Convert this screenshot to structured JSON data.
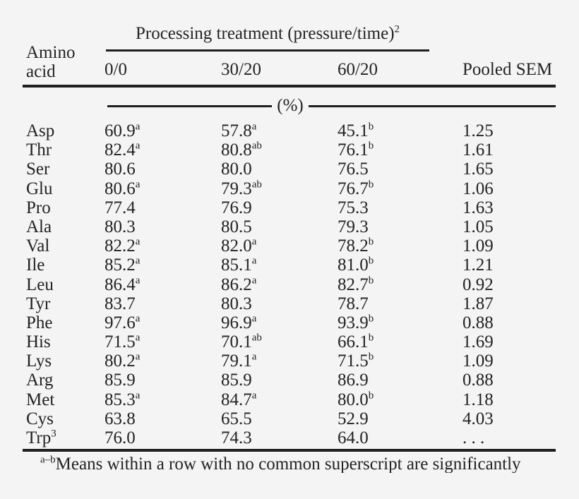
{
  "table": {
    "spanner_title": "Processing treatment (pressure/time)",
    "spanner_title_sup": "2",
    "stub_head_line1": "Amino",
    "stub_head_line2": "acid",
    "col_headers": [
      "0/0",
      "30/20",
      "60/20",
      "Pooled SEM"
    ],
    "unit_label": "(%)",
    "rows": [
      {
        "label": "Asp",
        "label_sup": "",
        "cells": [
          [
            "60.9",
            "a"
          ],
          [
            "57.8",
            "a"
          ],
          [
            "45.1",
            "b"
          ],
          [
            "1.25",
            ""
          ]
        ]
      },
      {
        "label": "Thr",
        "label_sup": "",
        "cells": [
          [
            "82.4",
            "a"
          ],
          [
            "80.8",
            "ab"
          ],
          [
            "76.1",
            "b"
          ],
          [
            "1.61",
            ""
          ]
        ]
      },
      {
        "label": "Ser",
        "label_sup": "",
        "cells": [
          [
            "80.6",
            ""
          ],
          [
            "80.0",
            ""
          ],
          [
            "76.5",
            ""
          ],
          [
            "1.65",
            ""
          ]
        ]
      },
      {
        "label": "Glu",
        "label_sup": "",
        "cells": [
          [
            "80.6",
            "a"
          ],
          [
            "79.3",
            "ab"
          ],
          [
            "76.7",
            "b"
          ],
          [
            "1.06",
            ""
          ]
        ]
      },
      {
        "label": "Pro",
        "label_sup": "",
        "cells": [
          [
            "77.4",
            ""
          ],
          [
            "76.9",
            ""
          ],
          [
            "75.3",
            ""
          ],
          [
            "1.63",
            ""
          ]
        ]
      },
      {
        "label": "Ala",
        "label_sup": "",
        "cells": [
          [
            "80.3",
            ""
          ],
          [
            "80.5",
            ""
          ],
          [
            "79.3",
            ""
          ],
          [
            "1.05",
            ""
          ]
        ]
      },
      {
        "label": "Val",
        "label_sup": "",
        "cells": [
          [
            "82.2",
            "a"
          ],
          [
            "82.0",
            "a"
          ],
          [
            "78.2",
            "b"
          ],
          [
            "1.09",
            ""
          ]
        ]
      },
      {
        "label": "Ile",
        "label_sup": "",
        "cells": [
          [
            "85.2",
            "a"
          ],
          [
            "85.1",
            "a"
          ],
          [
            "81.0",
            "b"
          ],
          [
            "1.21",
            ""
          ]
        ]
      },
      {
        "label": "Leu",
        "label_sup": "",
        "cells": [
          [
            "86.4",
            "a"
          ],
          [
            "86.2",
            "a"
          ],
          [
            "82.7",
            "b"
          ],
          [
            "0.92",
            ""
          ]
        ]
      },
      {
        "label": "Tyr",
        "label_sup": "",
        "cells": [
          [
            "83.7",
            ""
          ],
          [
            "80.3",
            ""
          ],
          [
            "78.7",
            ""
          ],
          [
            "1.87",
            ""
          ]
        ]
      },
      {
        "label": "Phe",
        "label_sup": "",
        "cells": [
          [
            "97.6",
            "a"
          ],
          [
            "96.9",
            "a"
          ],
          [
            "93.9",
            "b"
          ],
          [
            "0.88",
            ""
          ]
        ]
      },
      {
        "label": "His",
        "label_sup": "",
        "cells": [
          [
            "71.5",
            "a"
          ],
          [
            "70.1",
            "ab"
          ],
          [
            "66.1",
            "b"
          ],
          [
            "1.69",
            ""
          ]
        ]
      },
      {
        "label": "Lys",
        "label_sup": "",
        "cells": [
          [
            "80.2",
            "a"
          ],
          [
            "79.1",
            "a"
          ],
          [
            "71.5",
            "b"
          ],
          [
            "1.09",
            ""
          ]
        ]
      },
      {
        "label": "Arg",
        "label_sup": "",
        "cells": [
          [
            "85.9",
            ""
          ],
          [
            "85.9",
            ""
          ],
          [
            "86.9",
            ""
          ],
          [
            "0.88",
            ""
          ]
        ]
      },
      {
        "label": "Met",
        "label_sup": "",
        "cells": [
          [
            "85.3",
            "a"
          ],
          [
            "84.7",
            "a"
          ],
          [
            "80.0",
            "b"
          ],
          [
            "1.18",
            ""
          ]
        ]
      },
      {
        "label": "Cys",
        "label_sup": "",
        "cells": [
          [
            "63.8",
            ""
          ],
          [
            "65.5",
            ""
          ],
          [
            "52.9",
            ""
          ],
          [
            "4.03",
            ""
          ]
        ]
      },
      {
        "label": "Trp",
        "label_sup": "3",
        "cells": [
          [
            "76.0",
            ""
          ],
          [
            "74.3",
            ""
          ],
          [
            "64.0",
            ""
          ],
          [
            ". . .",
            ""
          ]
        ]
      }
    ],
    "footnote_sup": "a–b",
    "footnote_text": "Means within a row with no common superscript are significantly"
  },
  "colors": {
    "background": "#f4f4f4",
    "text": "#232323",
    "rule": "#1e1e1e"
  }
}
